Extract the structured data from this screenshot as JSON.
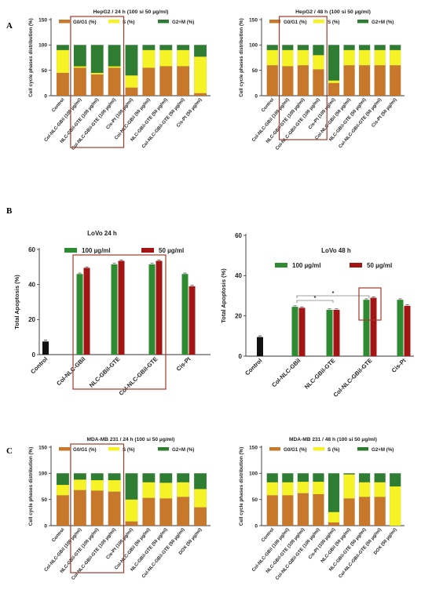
{
  "figure": {
    "panel_labels": [
      "A",
      "B",
      "C"
    ]
  },
  "colors": {
    "g0g1": "#c8782a",
    "s": "#f5f226",
    "g2m": "#2e7d32",
    "green_bar": "#2e8b32",
    "red_bar": "#a31515",
    "control_bar": "#111111",
    "highlight_box": "#a33a2a"
  },
  "chart_data": [
    {
      "type": "bar",
      "stacked": true,
      "title": "HepG2 / 24 h (100 si 50 µg/ml)",
      "ylabel": "Cell cycle phases distribution (%)",
      "ylim": [
        0,
        150
      ],
      "yticks": [
        "0",
        "50",
        "100",
        "150"
      ],
      "categories": [
        "Control",
        "Col-NLC-GBil (100 µg/ml)",
        "NLC-GBil-GTE (100 µg/ml)",
        "Col-NLC-GBil-GTE (100 µg/ml)",
        "Cis-Pt (100 µg/ml)",
        "Col-NLC-GBil (50 µg/ml)",
        "NLC-GBil-GTE (50 µg/ml)",
        "Col-NLC-GBil-GTE (50 µg/ml)",
        "Cis-Pt (50 µg/ml)"
      ],
      "series": [
        {
          "name": "G0/G1 (%)",
          "values": [
            45,
            55,
            42,
            55,
            16,
            55,
            58,
            58,
            5
          ]
        },
        {
          "name": "S (%)",
          "values": [
            45,
            3,
            3,
            3,
            24,
            35,
            32,
            32,
            72
          ]
        },
        {
          "name": "G2+M (%)",
          "values": [
            10,
            42,
            55,
            42,
            60,
            10,
            10,
            10,
            23
          ]
        }
      ],
      "highlight_categories": [
        1,
        2,
        3
      ],
      "legend": "top"
    },
    {
      "type": "bar",
      "stacked": true,
      "title": "HepG2 / 48 h (100 si 50 µg/ml)",
      "ylabel": "Cell cycle phases distribution (%)",
      "ylim": [
        0,
        150
      ],
      "yticks": [
        "0",
        "50",
        "100",
        "150"
      ],
      "categories": [
        "Control",
        "Col-NLC-GBil (100 µg/ml)",
        "NLC-GBil-GTE (100 µg/ml)",
        "Col-NLC-GBil-GTE (100 µg/ml)",
        "Cis-Pt (100 µg/ml)",
        "Col-NLC-GBil (50 µg/ml)",
        "NLC-GBil-GTE (50 µg/ml)",
        "Col-NLC-GBil-GTE (50 µg/ml)",
        "Cis-Pt (50 µg/ml)"
      ],
      "series": [
        {
          "name": "G0/G1 (%)",
          "values": [
            60,
            58,
            60,
            52,
            25,
            60,
            60,
            60,
            60
          ]
        },
        {
          "name": "S (%)",
          "values": [
            30,
            32,
            30,
            28,
            5,
            30,
            30,
            30,
            30
          ]
        },
        {
          "name": "G2+M (%)",
          "values": [
            10,
            10,
            10,
            20,
            70,
            10,
            10,
            10,
            10
          ]
        }
      ],
      "highlight_categories": [
        1,
        2,
        3
      ],
      "legend": "top"
    },
    {
      "type": "bar",
      "grouped": true,
      "title": "LoVo 24 h",
      "ylabel": "Total Apoptosis (%)",
      "ylim": [
        0,
        60
      ],
      "yticks": [
        "0",
        "20",
        "40",
        "60"
      ],
      "categories": [
        "Control",
        "Col-NLC-GBil",
        "NLC-GBil-GTE",
        "Col-NLC-GBil-GTE",
        "Cis-Pt"
      ],
      "control_value": 7.5,
      "series": [
        {
          "name": "100 µg/ml",
          "values": [
            null,
            46,
            51.5,
            51.5,
            46
          ]
        },
        {
          "name": "50 µg/ml",
          "values": [
            null,
            49.5,
            53.5,
            53.5,
            39
          ]
        }
      ],
      "highlight_categories": [
        1,
        2,
        3
      ],
      "legend": "top"
    },
    {
      "type": "bar",
      "grouped": true,
      "title": "LoVo 48 h",
      "ylabel": "Total Apoptosis (%)",
      "ylim": [
        0,
        60
      ],
      "yticks": [
        "0",
        "20",
        "40",
        "60"
      ],
      "categories": [
        "Control",
        "Col-NLC-GBil",
        "NLC-GBil-GTE",
        "Col-NLC-GBil-GTE",
        "Cis-Pt"
      ],
      "control_value": 9.5,
      "series": [
        {
          "name": "100 µg/ml",
          "values": [
            null,
            24.5,
            23,
            28,
            28
          ]
        },
        {
          "name": "50 µg/ml",
          "values": [
            null,
            24,
            23,
            29,
            25
          ]
        }
      ],
      "significance_marks": [
        "*",
        "*"
      ],
      "highlight_categories": [
        3
      ],
      "legend": "top"
    },
    {
      "type": "bar",
      "stacked": true,
      "title": "MDA-MB 231 / 24 h (100 si 50 µg/ml)",
      "ylabel": "Cell cycle phases distribution (%)",
      "ylim": [
        0,
        150
      ],
      "yticks": [
        "0",
        "50",
        "100",
        "150"
      ],
      "categories": [
        "Control",
        "Col-NLC-GBil (100 µg/ml)",
        "NLC-GBil-GTE (100 µg/ml)",
        "Col-NLC-GBil-GTE (100 µg/ml)",
        "Cis-Pt (100 µg/ml)",
        "Col-NLC-GBil (50 µg/ml)",
        "NLC-GBil-GTE (50 µg/ml)",
        "Col-NLC-GBil-GTE (50 µg/ml)",
        "DOX (50 µg/ml)"
      ],
      "series": [
        {
          "name": "G0/G1 (%)",
          "values": [
            58,
            68,
            67,
            65,
            8,
            53,
            52,
            55,
            35
          ]
        },
        {
          "name": "S (%)",
          "values": [
            20,
            20,
            20,
            22,
            42,
            30,
            30,
            28,
            35
          ]
        },
        {
          "name": "G2+M (%)",
          "values": [
            22,
            12,
            13,
            13,
            50,
            17,
            18,
            17,
            30
          ]
        }
      ],
      "highlight_categories": [
        1,
        2,
        3
      ],
      "legend": "top"
    },
    {
      "type": "bar",
      "stacked": true,
      "title": "MDA-MB 231 / 48 h (100 si 50 µg/ml)",
      "ylabel": "Cell cycle phases distribution (%)",
      "ylim": [
        0,
        150
      ],
      "yticks": [
        "0",
        "50",
        "100",
        "150"
      ],
      "categories": [
        "Control",
        "Col-NLC-GBil (100 µg/ml)",
        "NLC-GBil-GTE (100 µg/ml)",
        "Col-NLC-GBil-GTE (100 µg/ml)",
        "Cis-Pt (100 µg/ml)",
        "NLC-GBil (50 µg/ml)",
        "NLC-GBil-GTE (50 µg/ml)",
        "Col-NLC-GBil-GTE (50 µg/ml)",
        "DOX (50 µg/ml)"
      ],
      "series": [
        {
          "name": "G0/G1 (%)",
          "values": [
            58,
            58,
            62,
            60,
            6,
            52,
            55,
            55,
            0
          ]
        },
        {
          "name": "S (%)",
          "values": [
            25,
            25,
            22,
            24,
            20,
            46,
            28,
            28,
            75
          ]
        },
        {
          "name": "G2+M (%)",
          "values": [
            17,
            17,
            16,
            16,
            74,
            2,
            17,
            17,
            25
          ]
        }
      ],
      "legend": "top"
    }
  ]
}
